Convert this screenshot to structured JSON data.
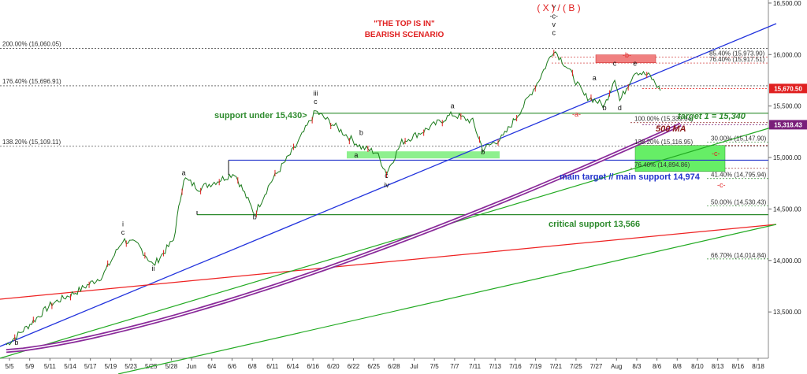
{
  "chart_data": {
    "type": "line",
    "title": "\"THE TOP IS IN\"",
    "subtitle": "BEARISH SCENARIO",
    "top_label": "( X ) / ( B )",
    "y_axis": {
      "ticks": [
        "16,500.00",
        "16,000.00",
        "15,500.00",
        "15,000.00",
        "14,500.00",
        "14,000.00",
        "13,500.00"
      ],
      "tick_values": [
        16500,
        16000,
        15500,
        15000,
        14500,
        14000,
        13500
      ],
      "ylim": [
        13050,
        16530
      ]
    },
    "x_axis": {
      "ticks": [
        "5/5",
        "5/9",
        "5/11",
        "5/14",
        "5/17",
        "5/19",
        "5/23",
        "5/25",
        "5/28",
        "Jun",
        "6/4",
        "6/6",
        "6/8",
        "6/11",
        "6/14",
        "6/16",
        "6/20",
        "6/22",
        "6/25",
        "6/28",
        "Jul",
        "7/5",
        "7/7",
        "7/11",
        "7/13",
        "7/16",
        "7/19",
        "7/21",
        "7/25",
        "7/27",
        "Aug",
        "8/3",
        "8/6",
        "8/8",
        "8/10",
        "8/13",
        "8/16",
        "8/18"
      ]
    },
    "price_badges": [
      {
        "value": "15,670.50",
        "price": 15670.5,
        "color": "#e02020"
      },
      {
        "value": "15,318.43",
        "price": 15318.43,
        "color": "#7a1f7a"
      }
    ],
    "fib_levels_left": [
      {
        "label": "200.00% (16,060.05)",
        "price": 16060.05
      },
      {
        "label": "176.40% (15,696.91)",
        "price": 15696.91
      },
      {
        "label": "138.20% (15,109.11)",
        "price": 15109.11
      }
    ],
    "fib_levels_right": [
      {
        "label": "85.40% (15,973.90)",
        "price": 15973.9,
        "color": "#cc2222"
      },
      {
        "label": "76.40% (15,917.51)",
        "price": 15917.51,
        "color": "#cc2222"
      },
      {
        "label": "100.00% (15,339.04)",
        "price": 15339.04,
        "color": "#8b1a1a"
      },
      {
        "label": "138.20% (15,116.95)",
        "price": 15116.95,
        "color": "#8b1a1a"
      },
      {
        "label": "30.00% (15,147.90)",
        "price": 15147.9,
        "color": "#2e8b2e"
      },
      {
        "label": "76.40% (14,894.86)",
        "price": 14894.86,
        "color": "#8b1a1a"
      },
      {
        "label": "41.40% (14,795.94)",
        "price": 14795.94,
        "color": "#2e8b2e"
      },
      {
        "label": "50.00% (14,530.43)",
        "price": 14530.43,
        "color": "#2e8b2e"
      },
      {
        "label": "66.70% (14,014.84)",
        "price": 14014.84,
        "color": "#2e8b2e"
      }
    ],
    "annotations": {
      "support_under": "support under 15,430>",
      "target1": "target 1 = 15,340",
      "ma500": "500 MA",
      "main_target": "main target // main support 14,974",
      "critical_support": "critical support 13,566",
      "c_label": "-c-",
      "b_label": "-b-",
      "a_label": "-a-"
    },
    "waves": [
      {
        "t": "b",
        "d": 2,
        "p": 13180
      },
      {
        "t": "i",
        "d": 23,
        "p": 14330
      },
      {
        "t": "c",
        "d": 23,
        "p": 14250
      },
      {
        "t": "ii",
        "d": 29,
        "p": 13900
      },
      {
        "t": "a",
        "d": 35,
        "p": 14830
      },
      {
        "t": "b",
        "d": 49,
        "p": 14400
      },
      {
        "t": "iii",
        "d": 61,
        "p": 15600
      },
      {
        "t": "c",
        "d": 61,
        "p": 15520
      },
      {
        "t": "b",
        "d": 70,
        "p": 15220
      },
      {
        "t": "a",
        "d": 69,
        "p": 15000
      },
      {
        "t": "c",
        "d": 75,
        "p": 14800
      },
      {
        "t": "iv",
        "d": 75,
        "p": 14710
      },
      {
        "t": "a",
        "d": 88,
        "p": 15480
      },
      {
        "t": "b",
        "d": 94,
        "p": 15030
      },
      {
        "t": "Y",
        "d": 108,
        "p": 16430
      },
      {
        "t": "-c-",
        "d": 108,
        "p": 16350
      },
      {
        "t": "v",
        "d": 108,
        "p": 16270
      },
      {
        "t": "c",
        "d": 108,
        "p": 16190
      },
      {
        "t": "a",
        "d": 116,
        "p": 15750
      },
      {
        "t": "b",
        "d": 118,
        "p": 15460
      },
      {
        "t": "c",
        "d": 120,
        "p": 15890
      },
      {
        "t": "d",
        "d": 121,
        "p": 15460
      },
      {
        "t": "e",
        "d": 124,
        "p": 15890
      }
    ]
  }
}
